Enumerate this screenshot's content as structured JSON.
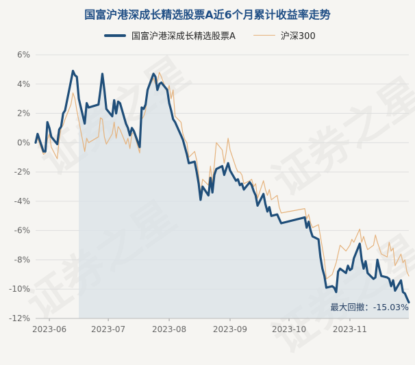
{
  "colors": {
    "fund": "#1f4e79",
    "index": "#e5b27c",
    "area": "#d9e1e7",
    "grid": "#dedede",
    "axis_text": "#666666",
    "title": "#1f4e85"
  },
  "watermark": "证券之星",
  "chart_data": {
    "type": "line",
    "title": "国富沪港深成长精选股票A近6个月累计收益率走势",
    "xlabel": "",
    "ylabel": "",
    "ylim": [
      -12,
      6
    ],
    "xlim": [
      "2023-05-25",
      "2023-12-01"
    ],
    "yticks": [
      "6%",
      "4%",
      "2%",
      "0%",
      "-2%",
      "-4%",
      "-6%",
      "-8%",
      "-10%",
      "-12%"
    ],
    "yticks_values": [
      6,
      4,
      2,
      0,
      -2,
      -4,
      -6,
      -8,
      -10,
      -12
    ],
    "xticks": [
      "2023-06",
      "2023-07",
      "2023-08",
      "2023-09",
      "2023-10",
      "2023-11"
    ],
    "xticks_dates": [
      "2023-06-01",
      "2023-07-01",
      "2023-08-01",
      "2023-09-01",
      "2023-10-01",
      "2023-11-01"
    ],
    "grid": "horizontal",
    "legend_position": "top-center",
    "shaded_range": [
      "2023-06-16",
      "2023-12-01"
    ],
    "annotation": "最大回撤：-15.03%",
    "series": [
      {
        "name": "国富沪港深成长精选股票A",
        "points": [
          [
            "2023-05-25",
            0.0
          ],
          [
            "2023-05-26",
            0.6
          ],
          [
            "2023-05-29",
            -0.6
          ],
          [
            "2023-05-30",
            -0.6
          ],
          [
            "2023-05-31",
            1.4
          ],
          [
            "2023-06-01",
            1.0
          ],
          [
            "2023-06-02",
            0.4
          ],
          [
            "2023-06-05",
            -0.1
          ],
          [
            "2023-06-06",
            0.9
          ],
          [
            "2023-06-07",
            1.1
          ],
          [
            "2023-06-08",
            2.0
          ],
          [
            "2023-06-09",
            2.2
          ],
          [
            "2023-06-12",
            4.2
          ],
          [
            "2023-06-13",
            4.9
          ],
          [
            "2023-06-14",
            4.6
          ],
          [
            "2023-06-15",
            4.5
          ],
          [
            "2023-06-16",
            3.0
          ],
          [
            "2023-06-19",
            1.3
          ],
          [
            "2023-06-20",
            2.7
          ],
          [
            "2023-06-21",
            2.4
          ],
          [
            "2023-06-26",
            2.6
          ],
          [
            "2023-06-27",
            3.6
          ],
          [
            "2023-06-28",
            4.7
          ],
          [
            "2023-06-29",
            3.6
          ],
          [
            "2023-06-30",
            2.3
          ],
          [
            "2023-07-03",
            1.8
          ],
          [
            "2023-07-04",
            2.9
          ],
          [
            "2023-07-05",
            2.0
          ],
          [
            "2023-07-06",
            2.8
          ],
          [
            "2023-07-07",
            2.7
          ],
          [
            "2023-07-10",
            1.3
          ],
          [
            "2023-07-11",
            1.0
          ],
          [
            "2023-07-12",
            0.5
          ],
          [
            "2023-07-13",
            1.0
          ],
          [
            "2023-07-14",
            0.8
          ],
          [
            "2023-07-17",
            -0.3
          ],
          [
            "2023-07-18",
            2.4
          ],
          [
            "2023-07-19",
            2.3
          ],
          [
            "2023-07-20",
            2.6
          ],
          [
            "2023-07-21",
            3.6
          ],
          [
            "2023-07-24",
            4.7
          ],
          [
            "2023-07-25",
            4.5
          ],
          [
            "2023-07-26",
            3.6
          ],
          [
            "2023-07-27",
            4.0
          ],
          [
            "2023-07-28",
            4.1
          ],
          [
            "2023-07-31",
            3.6
          ],
          [
            "2023-08-01",
            2.7
          ],
          [
            "2023-08-02",
            2.2
          ],
          [
            "2023-08-03",
            1.6
          ],
          [
            "2023-08-04",
            1.4
          ],
          [
            "2023-08-07",
            0.5
          ],
          [
            "2023-08-08",
            0.2
          ],
          [
            "2023-08-09",
            -0.3
          ],
          [
            "2023-08-10",
            -0.8
          ],
          [
            "2023-08-11",
            -1.4
          ],
          [
            "2023-08-14",
            -1.3
          ],
          [
            "2023-08-15",
            -2.0
          ],
          [
            "2023-08-16",
            -2.8
          ],
          [
            "2023-08-17",
            -3.9
          ],
          [
            "2023-08-18",
            -3.0
          ],
          [
            "2023-08-21",
            -3.6
          ],
          [
            "2023-08-22",
            -2.4
          ],
          [
            "2023-08-23",
            -3.4
          ],
          [
            "2023-08-24",
            -2.2
          ],
          [
            "2023-08-25",
            -1.8
          ],
          [
            "2023-08-28",
            -1.6
          ],
          [
            "2023-08-29",
            -2.2
          ],
          [
            "2023-08-30",
            -1.8
          ],
          [
            "2023-08-31",
            -1.4
          ],
          [
            "2023-09-01",
            -1.9
          ],
          [
            "2023-09-04",
            -2.6
          ],
          [
            "2023-09-05",
            -2.5
          ],
          [
            "2023-09-06",
            -2.9
          ],
          [
            "2023-09-07",
            -2.8
          ],
          [
            "2023-09-08",
            -3.2
          ],
          [
            "2023-09-11",
            -2.7
          ],
          [
            "2023-09-12",
            -2.9
          ],
          [
            "2023-09-13",
            -3.3
          ],
          [
            "2023-09-14",
            -3.6
          ],
          [
            "2023-09-15",
            -4.3
          ],
          [
            "2023-09-18",
            -3.5
          ],
          [
            "2023-09-19",
            -4.2
          ],
          [
            "2023-09-20",
            -4.7
          ],
          [
            "2023-09-21",
            -4.4
          ],
          [
            "2023-09-22",
            -5.0
          ],
          [
            "2023-09-25",
            -4.9
          ],
          [
            "2023-09-26",
            -5.2
          ],
          [
            "2023-09-27",
            -5.5
          ],
          [
            "2023-10-09",
            -5.1
          ],
          [
            "2023-10-10",
            -5.8
          ],
          [
            "2023-10-11",
            -5.4
          ],
          [
            "2023-10-12",
            -6.0
          ],
          [
            "2023-10-13",
            -6.4
          ],
          [
            "2023-10-16",
            -6.6
          ],
          [
            "2023-10-17",
            -7.8
          ],
          [
            "2023-10-18",
            -8.6
          ],
          [
            "2023-10-19",
            -9.1
          ],
          [
            "2023-10-20",
            -9.9
          ],
          [
            "2023-10-23",
            -9.8
          ],
          [
            "2023-10-24",
            -9.9
          ],
          [
            "2023-10-25",
            -10.2
          ],
          [
            "2023-10-26",
            -8.8
          ],
          [
            "2023-10-27",
            -8.6
          ],
          [
            "2023-10-30",
            -8.9
          ],
          [
            "2023-10-31",
            -8.4
          ],
          [
            "2023-11-01",
            -8.7
          ],
          [
            "2023-11-02",
            -8.6
          ],
          [
            "2023-11-03",
            -7.9
          ],
          [
            "2023-11-06",
            -6.9
          ],
          [
            "2023-11-07",
            -8.0
          ],
          [
            "2023-11-08",
            -8.6
          ],
          [
            "2023-11-09",
            -8.1
          ],
          [
            "2023-11-10",
            -8.9
          ],
          [
            "2023-11-13",
            -9.3
          ],
          [
            "2023-11-14",
            -9.2
          ],
          [
            "2023-11-15",
            -8.0
          ],
          [
            "2023-11-16",
            -8.6
          ],
          [
            "2023-11-17",
            -9.1
          ],
          [
            "2023-11-20",
            -9.2
          ],
          [
            "2023-11-21",
            -9.3
          ],
          [
            "2023-11-22",
            -9.8
          ],
          [
            "2023-11-23",
            -9.4
          ],
          [
            "2023-11-24",
            -10.1
          ],
          [
            "2023-11-27",
            -9.4
          ],
          [
            "2023-11-28",
            -10.2
          ],
          [
            "2023-11-29",
            -10.3
          ],
          [
            "2023-11-30",
            -10.6
          ],
          [
            "2023-12-01",
            -10.9
          ]
        ]
      },
      {
        "name": "沪深300",
        "points": [
          [
            "2023-05-25",
            0.0
          ],
          [
            "2023-05-26",
            0.3
          ],
          [
            "2023-05-29",
            -0.8
          ],
          [
            "2023-05-30",
            -0.7
          ],
          [
            "2023-05-31",
            0.2
          ],
          [
            "2023-06-01",
            0.6
          ],
          [
            "2023-06-02",
            -0.3
          ],
          [
            "2023-06-05",
            -1.1
          ],
          [
            "2023-06-06",
            0.2
          ],
          [
            "2023-06-07",
            1.0
          ],
          [
            "2023-06-08",
            1.2
          ],
          [
            "2023-06-09",
            1.6
          ],
          [
            "2023-06-12",
            2.6
          ],
          [
            "2023-06-13",
            3.4
          ],
          [
            "2023-06-14",
            3.0
          ],
          [
            "2023-06-15",
            2.2
          ],
          [
            "2023-06-16",
            1.5
          ],
          [
            "2023-06-19",
            -0.6
          ],
          [
            "2023-06-20",
            0.3
          ],
          [
            "2023-06-21",
            0.0
          ],
          [
            "2023-06-26",
            0.4
          ],
          [
            "2023-06-27",
            1.7
          ],
          [
            "2023-06-28",
            1.6
          ],
          [
            "2023-06-29",
            0.4
          ],
          [
            "2023-06-30",
            -0.1
          ],
          [
            "2023-07-03",
            0.6
          ],
          [
            "2023-07-04",
            1.4
          ],
          [
            "2023-07-05",
            0.3
          ],
          [
            "2023-07-06",
            1.1
          ],
          [
            "2023-07-07",
            0.9
          ],
          [
            "2023-07-10",
            -0.1
          ],
          [
            "2023-07-11",
            0.3
          ],
          [
            "2023-07-12",
            -0.4
          ],
          [
            "2023-07-13",
            0.6
          ],
          [
            "2023-07-14",
            0.7
          ],
          [
            "2023-07-17",
            -0.7
          ],
          [
            "2023-07-18",
            1.6
          ],
          [
            "2023-07-19",
            1.8
          ],
          [
            "2023-07-20",
            2.2
          ],
          [
            "2023-07-21",
            3.6
          ],
          [
            "2023-07-24",
            4.4
          ],
          [
            "2023-07-25",
            4.0
          ],
          [
            "2023-07-26",
            4.2
          ],
          [
            "2023-07-27",
            4.8
          ],
          [
            "2023-07-28",
            4.5
          ],
          [
            "2023-07-31",
            3.4
          ],
          [
            "2023-08-01",
            3.9
          ],
          [
            "2023-08-02",
            3.0
          ],
          [
            "2023-08-03",
            3.6
          ],
          [
            "2023-08-04",
            1.8
          ],
          [
            "2023-08-07",
            1.4
          ],
          [
            "2023-08-08",
            0.6
          ],
          [
            "2023-08-09",
            0.2
          ],
          [
            "2023-08-10",
            0.0
          ],
          [
            "2023-08-11",
            -1.0
          ],
          [
            "2023-08-14",
            -0.6
          ],
          [
            "2023-08-15",
            -1.2
          ],
          [
            "2023-08-16",
            -2.2
          ],
          [
            "2023-08-17",
            -3.5
          ],
          [
            "2023-08-18",
            -2.5
          ],
          [
            "2023-08-21",
            -2.9
          ],
          [
            "2023-08-22",
            -1.6
          ],
          [
            "2023-08-23",
            -2.8
          ],
          [
            "2023-08-24",
            -1.5
          ],
          [
            "2023-08-25",
            0.0
          ],
          [
            "2023-08-28",
            -0.5
          ],
          [
            "2023-08-29",
            -1.4
          ],
          [
            "2023-08-30",
            -0.7
          ],
          [
            "2023-08-31",
            0.3
          ],
          [
            "2023-09-01",
            -0.5
          ],
          [
            "2023-09-04",
            -1.7
          ],
          [
            "2023-09-05",
            -2.0
          ],
          [
            "2023-09-06",
            -2.0
          ],
          [
            "2023-09-07",
            -2.2
          ],
          [
            "2023-09-08",
            -2.8
          ],
          [
            "2023-09-11",
            -2.6
          ],
          [
            "2023-09-12",
            -2.5
          ],
          [
            "2023-09-13",
            -3.0
          ],
          [
            "2023-09-14",
            -2.8
          ],
          [
            "2023-09-15",
            -3.8
          ],
          [
            "2023-09-18",
            -2.6
          ],
          [
            "2023-09-19",
            -3.2
          ],
          [
            "2023-09-20",
            -3.6
          ],
          [
            "2023-09-21",
            -3.2
          ],
          [
            "2023-09-22",
            -3.9
          ],
          [
            "2023-09-25",
            -3.6
          ],
          [
            "2023-09-26",
            -4.4
          ],
          [
            "2023-09-27",
            -4.8
          ],
          [
            "2023-10-09",
            -4.5
          ],
          [
            "2023-10-10",
            -5.2
          ],
          [
            "2023-10-11",
            -4.9
          ],
          [
            "2023-10-12",
            -5.5
          ],
          [
            "2023-10-13",
            -5.8
          ],
          [
            "2023-10-16",
            -5.6
          ],
          [
            "2023-10-17",
            -6.4
          ],
          [
            "2023-10-18",
            -7.2
          ],
          [
            "2023-10-19",
            -8.0
          ],
          [
            "2023-10-20",
            -9.3
          ],
          [
            "2023-10-23",
            -9.0
          ],
          [
            "2023-10-24",
            -8.6
          ],
          [
            "2023-10-25",
            -8.2
          ],
          [
            "2023-10-26",
            -7.6
          ],
          [
            "2023-10-27",
            -7.0
          ],
          [
            "2023-10-30",
            -7.4
          ],
          [
            "2023-10-31",
            -7.2
          ],
          [
            "2023-11-01",
            -7.0
          ],
          [
            "2023-11-02",
            -6.6
          ],
          [
            "2023-11-03",
            -6.8
          ],
          [
            "2023-11-06",
            -5.9
          ],
          [
            "2023-11-07",
            -6.8
          ],
          [
            "2023-11-08",
            -6.4
          ],
          [
            "2023-11-09",
            -6.9
          ],
          [
            "2023-11-10",
            -7.3
          ],
          [
            "2023-11-13",
            -7.0
          ],
          [
            "2023-11-14",
            -6.3
          ],
          [
            "2023-11-15",
            -6.8
          ],
          [
            "2023-11-16",
            -7.2
          ],
          [
            "2023-11-17",
            -7.6
          ],
          [
            "2023-11-20",
            -7.8
          ],
          [
            "2023-11-21",
            -6.8
          ],
          [
            "2023-11-22",
            -7.4
          ],
          [
            "2023-11-23",
            -7.2
          ],
          [
            "2023-11-24",
            -8.4
          ],
          [
            "2023-11-27",
            -7.6
          ],
          [
            "2023-11-28",
            -8.2
          ],
          [
            "2023-11-29",
            -8.0
          ],
          [
            "2023-11-30",
            -8.8
          ],
          [
            "2023-12-01",
            -9.1
          ]
        ]
      }
    ]
  }
}
